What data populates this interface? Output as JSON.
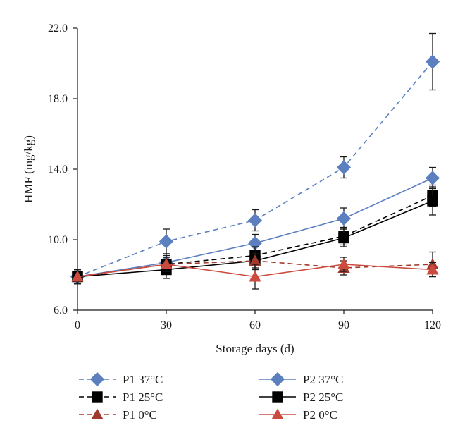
{
  "chart_data": {
    "type": "line",
    "title": "",
    "xlabel": "Storage days (d)",
    "ylabel": "HMF (mg/kg)",
    "x": [
      0,
      30,
      60,
      90,
      120
    ],
    "xticks": [
      "0",
      "30",
      "60",
      "90",
      "120"
    ],
    "yticks": [
      "6.0",
      "10.0",
      "14.0",
      "18.0",
      "22.0"
    ],
    "xlim": [
      0,
      120
    ],
    "ylim": [
      6,
      22
    ],
    "grid": false,
    "legend_position": "bottom",
    "series": [
      {
        "name": "P1 37°C",
        "color": "#5b7fbf",
        "dash": true,
        "marker": "diamond",
        "values": [
          7.9,
          9.9,
          11.1,
          14.1,
          20.1
        ],
        "errors": [
          0.4,
          0.7,
          0.6,
          0.6,
          1.6
        ]
      },
      {
        "name": "P2 37°C",
        "color": "#5b7fbf",
        "dash": false,
        "marker": "diamond",
        "values": [
          7.9,
          8.7,
          9.8,
          11.2,
          13.5
        ],
        "errors": [
          0.4,
          0.5,
          0.5,
          0.6,
          0.6
        ]
      },
      {
        "name": "P1 25°C",
        "color": "#000000",
        "dash": true,
        "marker": "square",
        "values": [
          7.9,
          8.6,
          9.1,
          10.2,
          12.5
        ],
        "errors": [
          0.4,
          0.5,
          0.5,
          0.5,
          0.6
        ]
      },
      {
        "name": "P2 25°C",
        "color": "#000000",
        "dash": false,
        "marker": "square",
        "values": [
          7.9,
          8.3,
          8.8,
          10.1,
          12.2
        ],
        "errors": [
          0.4,
          0.5,
          0.5,
          0.5,
          0.8
        ]
      },
      {
        "name": "P1 0°C",
        "color": "#a13a2c",
        "dash": true,
        "marker": "triangle",
        "values": [
          7.9,
          8.6,
          8.8,
          8.4,
          8.6
        ],
        "errors": [
          0.4,
          0.4,
          0.4,
          0.4,
          0.7
        ]
      },
      {
        "name": "P2 0°C",
        "color": "#cc4b3f",
        "dash": false,
        "marker": "triangle",
        "values": [
          7.9,
          8.6,
          7.9,
          8.6,
          8.3
        ],
        "errors": [
          0.4,
          0.4,
          0.7,
          0.4,
          0.4
        ]
      }
    ]
  }
}
